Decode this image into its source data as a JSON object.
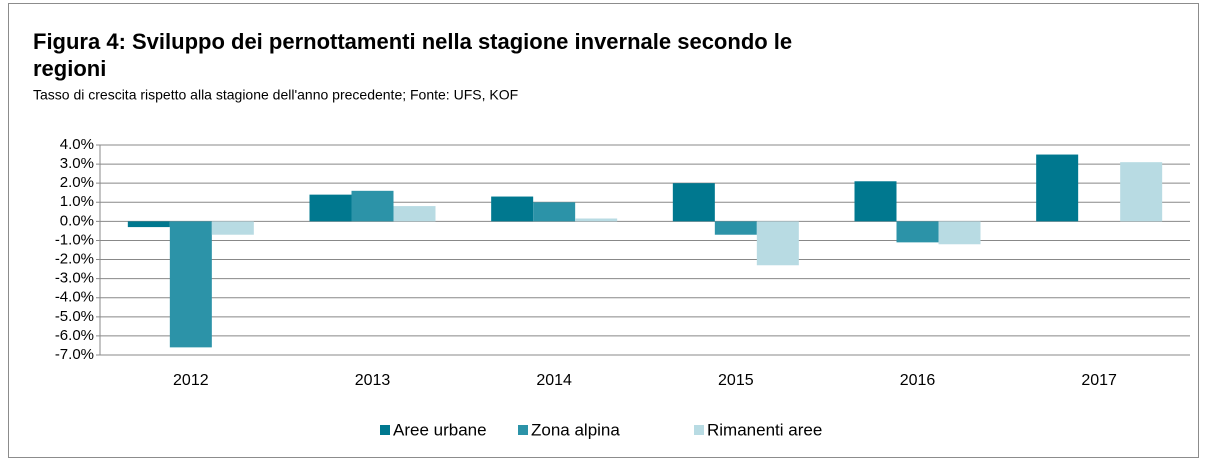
{
  "chart_data": {
    "type": "bar",
    "title": "Figura 4: Sviluppo dei pernottamenti nella stagione invernale secondo le regioni",
    "subtitle": "Tasso di crescita rispetto alla stagione dell'anno precedente; Fonte: UFS, KOF",
    "categories": [
      "2012",
      "2013",
      "2014",
      "2015",
      "2016",
      "2017"
    ],
    "series": [
      {
        "name": "Aree urbane",
        "color": "#00788f",
        "values": [
          -0.3,
          1.4,
          1.3,
          2.0,
          2.1,
          3.5
        ]
      },
      {
        "name": "Zona alpina",
        "color": "#2c93a8",
        "values": [
          -6.6,
          1.6,
          1.0,
          -0.7,
          -1.1,
          0
        ]
      },
      {
        "name": "Rimanenti aree",
        "color": "#b8dbe3",
        "values": [
          -0.7,
          0.8,
          0.15,
          -2.3,
          -1.2,
          3.1
        ]
      }
    ],
    "ylim": [
      -7,
      4
    ],
    "yticks": [
      {
        "value": -7,
        "label": "-7.0%"
      },
      {
        "value": -6,
        "label": "-6.0%"
      },
      {
        "value": -5,
        "label": "-5.0%"
      },
      {
        "value": -4,
        "label": "-4.0%"
      },
      {
        "value": -3,
        "label": "-3.0%"
      },
      {
        "value": -2,
        "label": "-2.0%"
      },
      {
        "value": -1,
        "label": "-1.0%"
      },
      {
        "value": 0,
        "label": "0.0%"
      },
      {
        "value": 1,
        "label": "1.0%"
      },
      {
        "value": 2,
        "label": "2.0%"
      },
      {
        "value": 3,
        "label": "3.0%"
      },
      {
        "value": 4,
        "label": "4.0%"
      }
    ],
    "grid": true,
    "legend": "bottom"
  }
}
